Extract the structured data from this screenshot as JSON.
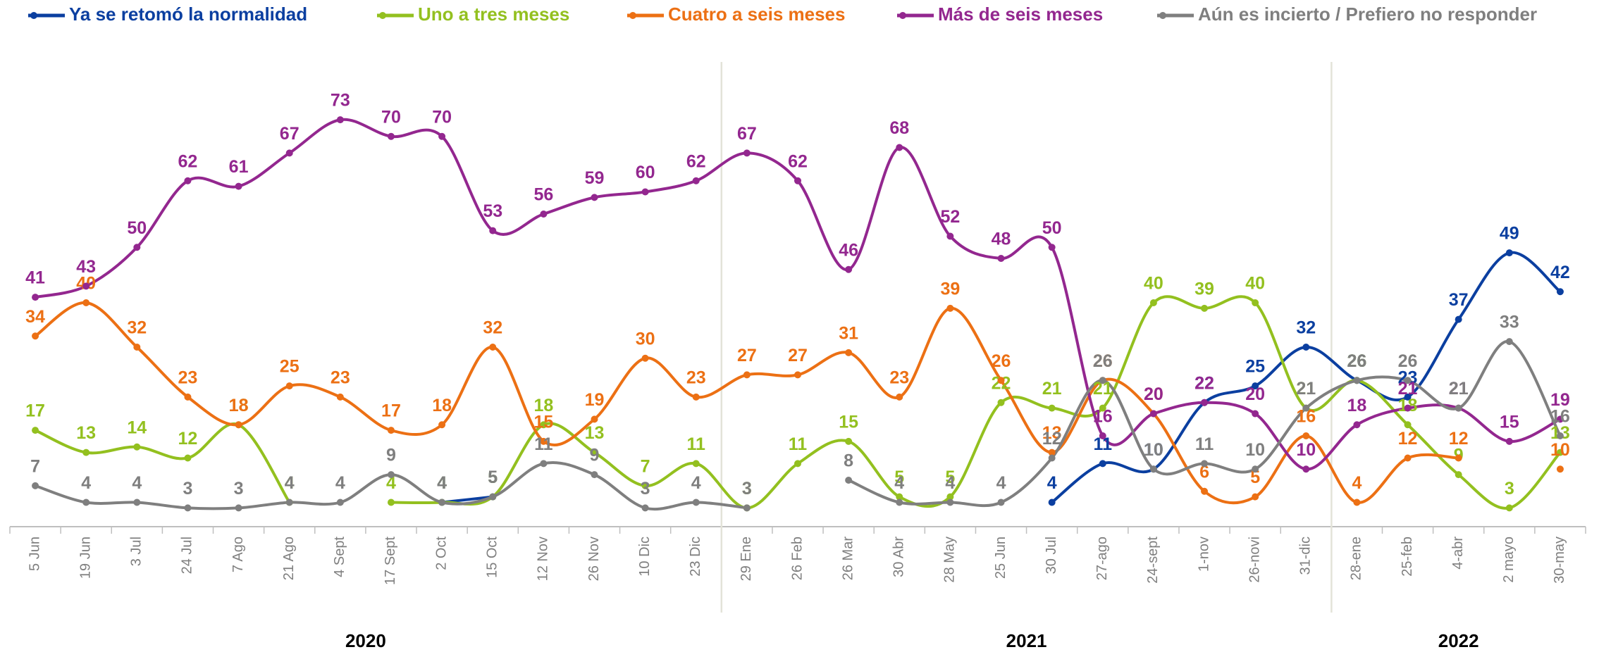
{
  "chart_data": {
    "type": "line",
    "categories": [
      "5 Jun",
      "19 Jun",
      "3 Jul",
      "24 Jul",
      "7 Ago",
      "21 Ago",
      "4 Sept",
      "17 Sept",
      "2 Oct",
      "15 Oct",
      "12 Nov",
      "26 Nov",
      "10 Dic",
      "23 Dic",
      "29 Ene",
      "26 Feb",
      "26 Mar",
      "30 Abr",
      "28 May",
      "25 Jun",
      "30 Jul",
      "27-ago",
      "24-sept",
      "1-nov",
      "26-novi",
      "31-dic",
      "28-ene",
      "25-feb",
      "4-abr",
      "2 mayo",
      "30-may"
    ],
    "groups": [
      "2020",
      "2021",
      "2022"
    ],
    "ylim": [
      0,
      80
    ],
    "series": [
      {
        "name": "Ya se retomó la normalidad",
        "color": "#0b3fa0",
        "values": [
          null,
          null,
          null,
          null,
          null,
          null,
          null,
          null,
          4,
          5,
          null,
          null,
          null,
          null,
          null,
          null,
          null,
          null,
          null,
          null,
          4,
          11,
          10,
          22,
          25,
          32,
          26,
          23,
          37,
          49,
          42
        ]
      },
      {
        "name": "Uno a tres meses",
        "color": "#93c01f",
        "values": [
          17,
          13,
          14,
          12,
          18,
          4,
          null,
          4,
          4,
          5,
          18,
          13,
          7,
          11,
          3,
          11,
          15,
          5,
          5,
          22,
          21,
          21,
          40,
          39,
          40,
          21,
          26,
          18,
          9,
          3,
          13
        ]
      },
      {
        "name": "Cuatro a seis meses",
        "color": "#ec7014",
        "values": [
          34,
          40,
          32,
          23,
          18,
          25,
          23,
          17,
          18,
          32,
          15,
          19,
          30,
          23,
          27,
          27,
          31,
          23,
          39,
          26,
          13,
          26,
          20,
          6,
          5,
          16,
          4,
          12,
          12,
          null,
          10
        ]
      },
      {
        "name": "Más de seis meses",
        "color": "#93278f",
        "values": [
          41,
          43,
          50,
          62,
          61,
          67,
          73,
          70,
          70,
          53,
          56,
          59,
          60,
          62,
          67,
          62,
          46,
          68,
          52,
          48,
          50,
          16,
          20,
          22,
          20,
          10,
          18,
          21,
          21,
          15,
          19
        ]
      },
      {
        "name": "Aún es incierto / Prefiero no responder",
        "color": "#7f7f7f",
        "values": [
          7,
          4,
          4,
          3,
          3,
          4,
          4,
          9,
          4,
          5,
          11,
          9,
          3,
          4,
          3,
          null,
          8,
          4,
          4,
          4,
          12,
          26,
          10,
          11,
          10,
          21,
          26,
          26,
          21,
          33,
          16
        ]
      }
    ]
  }
}
